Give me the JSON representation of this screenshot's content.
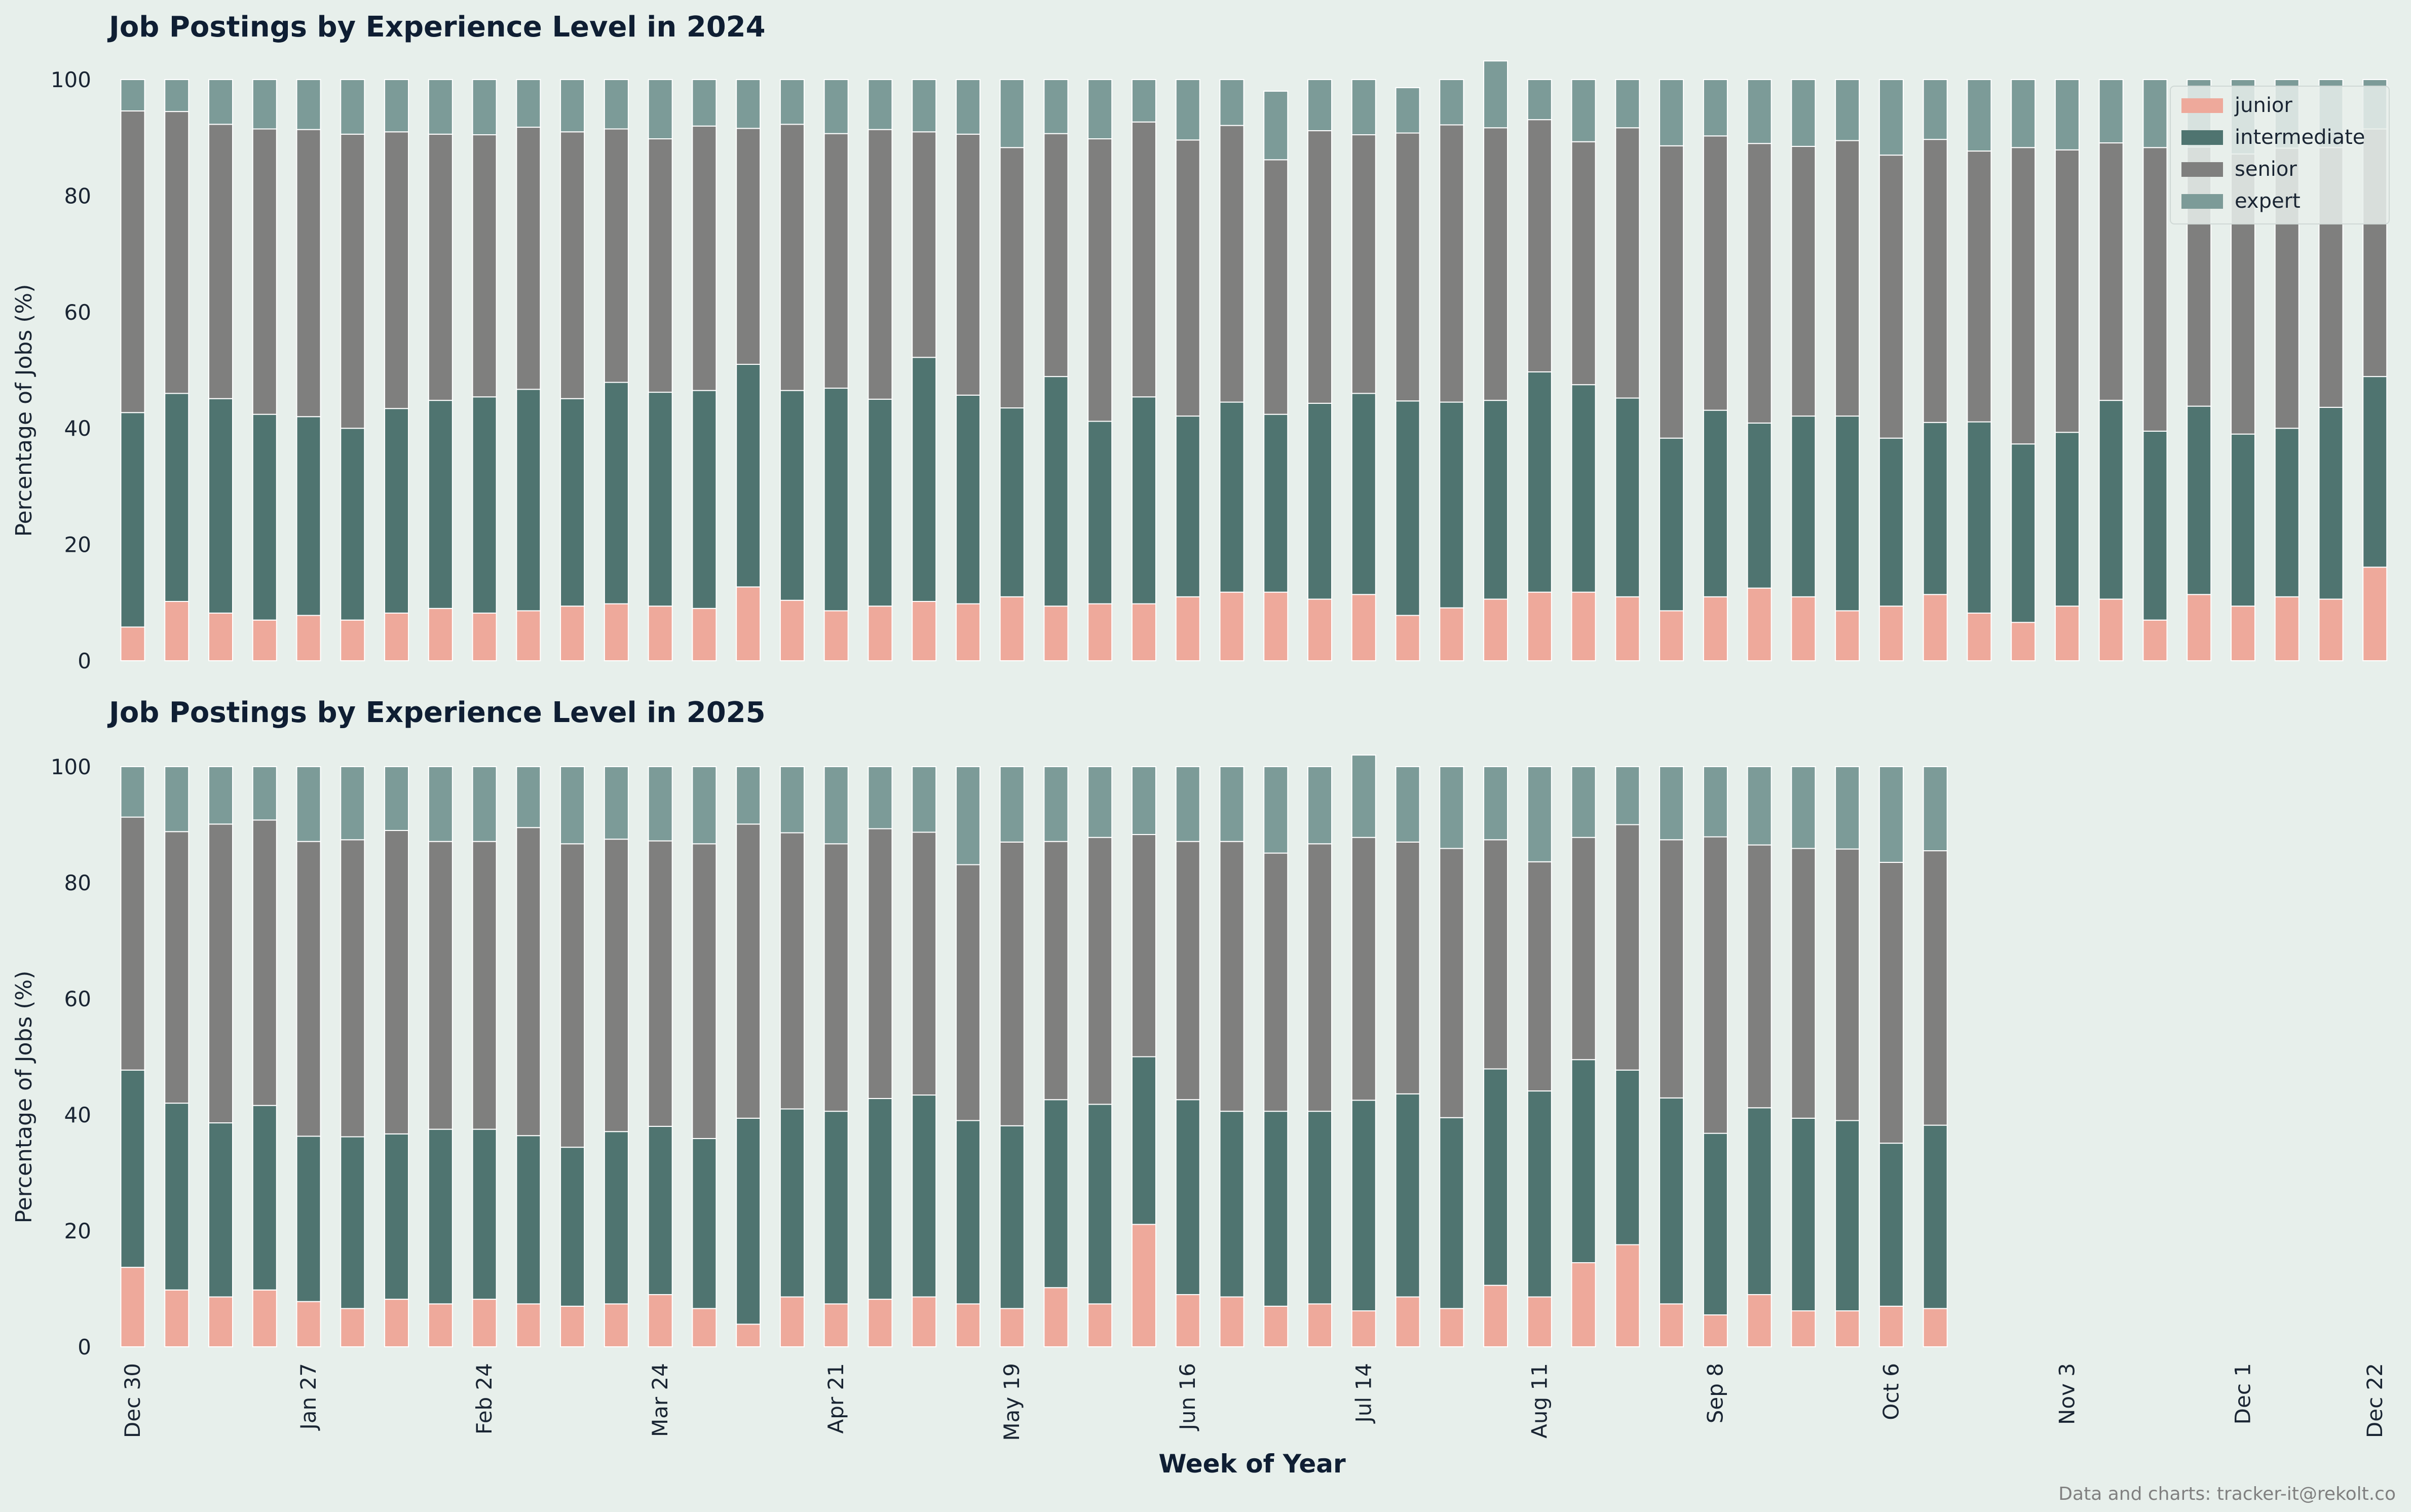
{
  "colors": {
    "background": "#e7efeb",
    "junior": "#eea99b",
    "intermediate": "#4f7470",
    "senior": "#7f7f7e",
    "expert": "#7c9b98",
    "text": "#0f1e33"
  },
  "legend_position": "top-right",
  "xlabel": "Week of Year",
  "credit": "Data and charts: tracker-it@rekolt.co",
  "x_tick_labels": [
    "Dec 30",
    "Jan 27",
    "Feb 24",
    "Mar 24",
    "Apr 21",
    "May 19",
    "Jun 16",
    "Jul 14",
    "Aug 11",
    "Sep 8",
    "Oct 6",
    "Nov 3",
    "Dec 1",
    "Dec 22"
  ],
  "x_tick_index": [
    0,
    4,
    8,
    12,
    16,
    20,
    24,
    28,
    32,
    36,
    40,
    44,
    48,
    51
  ],
  "chart_data": [
    {
      "type": "bar",
      "stacked": true,
      "title": "Job Postings by Experience Level in 2024",
      "ylabel": "Percentage of Jobs (%)",
      "ylim": [
        0,
        100
      ],
      "y_ticks": [
        0,
        20,
        40,
        60,
        80,
        100
      ],
      "grid": false,
      "legend": true,
      "series": [
        {
          "name": "junior",
          "values": [
            5.8,
            10.2,
            8.2,
            7,
            7.8,
            7,
            8.2,
            9,
            8.2,
            8.6,
            9.4,
            9.8,
            9.4,
            9,
            12.7,
            10.4,
            8.6,
            9.4,
            10.2,
            9.8,
            11,
            9.4,
            9.8,
            9.8,
            11,
            11.8,
            11.8,
            10.6,
            11.4,
            7.8,
            9.1,
            10.6,
            11.8,
            11.8,
            11,
            8.6,
            11,
            12.5,
            11,
            8.6,
            9.4,
            11.4,
            8.2,
            6.6,
            9.4,
            10.6,
            7,
            11.4,
            9.4,
            11,
            10.6,
            16.1
          ]
        },
        {
          "name": "intermediate",
          "values": [
            36.9,
            35.8,
            36.9,
            35.4,
            34.2,
            33,
            35.2,
            35.8,
            37.2,
            38.1,
            35.7,
            38.1,
            36.8,
            37.5,
            38.3,
            36.1,
            38.3,
            35.6,
            42,
            35.9,
            32.5,
            39.5,
            31.4,
            35.6,
            31.1,
            32.7,
            30.6,
            33.7,
            34.6,
            36.9,
            35.4,
            34.2,
            37.9,
            35.7,
            34.2,
            29.7,
            32.1,
            28.4,
            31.1,
            33.5,
            28.9,
            29.6,
            32.9,
            30.7,
            29.9,
            34.2,
            32.5,
            32.4,
            29.6,
            29,
            33,
            32.8
          ]
        },
        {
          "name": "senior",
          "values": [
            51.9,
            48.5,
            47.2,
            49.1,
            49.4,
            50.6,
            47.6,
            45.8,
            45.1,
            45.1,
            45.9,
            43.6,
            43.6,
            45.5,
            40.6,
            45.8,
            43.8,
            46.4,
            38.8,
            44.9,
            44.8,
            41.8,
            48.6,
            47.3,
            47.5,
            47.6,
            43.8,
            46.9,
            44.5,
            46.1,
            47.7,
            46.9,
            43.4,
            41.8,
            46.5,
            50.3,
            47.2,
            48.1,
            46.4,
            47.4,
            48.7,
            48.7,
            46.6,
            51,
            48.6,
            44.3,
            48.8,
            44.6,
            48.2,
            48.2,
            44.7,
            42.6
          ]
        },
        {
          "name": "expert",
          "values": [
            5.4,
            5.5,
            7.7,
            8.5,
            8.6,
            9.4,
            9,
            9.4,
            9.5,
            8.2,
            9,
            8.5,
            10.2,
            8,
            8.4,
            7.7,
            9.3,
            8.6,
            9,
            9.4,
            11.7,
            9.3,
            10.2,
            7.3,
            10.4,
            7.9,
            11.8,
            8.8,
            9.5,
            7.8,
            7.8,
            11.5,
            6.9,
            10.7,
            8.3,
            11.4,
            9.7,
            11,
            11.5,
            10.5,
            13,
            10.3,
            12.3,
            11.7,
            12.1,
            10.9,
            11.7,
            11.6,
            12.8,
            11.8,
            11.7,
            8.5
          ]
        }
      ]
    },
    {
      "type": "bar",
      "stacked": true,
      "title": "Job Postings by Experience Level in 2025",
      "ylabel": "Percentage of Jobs (%)",
      "ylim": [
        0,
        100
      ],
      "y_ticks": [
        0,
        20,
        40,
        60,
        80,
        100
      ],
      "grid": false,
      "legend": false,
      "series": [
        {
          "name": "junior",
          "values": [
            13.7,
            9.8,
            8.6,
            9.8,
            7.8,
            6.6,
            8.2,
            7.4,
            8.2,
            7.4,
            7,
            7.4,
            9,
            6.6,
            3.9,
            8.6,
            7.4,
            8.2,
            8.6,
            7.4,
            6.6,
            10.2,
            7.4,
            21.1,
            9,
            8.6,
            7,
            7.4,
            6.2,
            8.6,
            6.6,
            10.6,
            8.6,
            14.5,
            17.6,
            7.4,
            5.5,
            9,
            6.2,
            6.2,
            7,
            6.6,
            0,
            0,
            0,
            0,
            0,
            0,
            0,
            0,
            0,
            0
          ]
        },
        {
          "name": "intermediate",
          "values": [
            34,
            32.2,
            30,
            31.8,
            28.5,
            29.6,
            28.5,
            30.1,
            29.3,
            29,
            27.4,
            29.7,
            29,
            29.3,
            35.5,
            32.4,
            33.2,
            34.6,
            34.8,
            31.6,
            31.5,
            32.4,
            34.4,
            28.9,
            33.6,
            32,
            33.6,
            33.2,
            36.3,
            35,
            32.9,
            37.3,
            35.5,
            35,
            30.1,
            35.5,
            31.3,
            32.2,
            33.2,
            32.8,
            28.1,
            31.6,
            0,
            0,
            0,
            0,
            0,
            0,
            0,
            0,
            0,
            0
          ]
        },
        {
          "name": "senior",
          "values": [
            43.6,
            46.8,
            51.5,
            49.2,
            50.8,
            51.2,
            52.3,
            49.6,
            49.6,
            53.1,
            52.3,
            50.4,
            49.2,
            50.8,
            50.7,
            47.6,
            46.1,
            46.5,
            45.3,
            44.1,
            48.9,
            44.5,
            46,
            38.3,
            44.5,
            46.5,
            44.5,
            46.1,
            45.3,
            43.4,
            46.4,
            39.5,
            39.5,
            38.3,
            42.3,
            44.5,
            51.1,
            45.3,
            46.5,
            46.8,
            48.4,
            47.3,
            0,
            0,
            0,
            0,
            0,
            0,
            0,
            0,
            0,
            0
          ]
        },
        {
          "name": "expert",
          "values": [
            8.7,
            11.2,
            9.9,
            9.2,
            12.9,
            12.6,
            11,
            12.9,
            12.9,
            10.5,
            13.3,
            12.5,
            12.8,
            13.3,
            9.9,
            11.4,
            13.3,
            10.7,
            11.3,
            16.9,
            13,
            12.9,
            12.2,
            11.7,
            12.9,
            12.9,
            14.9,
            13.3,
            14.2,
            13,
            14.1,
            12.6,
            16.4,
            12.2,
            10,
            12.6,
            12.1,
            13.5,
            14.1,
            14.2,
            16.5,
            14.5,
            0,
            0,
            0,
            0,
            0,
            0,
            0,
            0,
            0,
            0
          ]
        }
      ]
    }
  ]
}
